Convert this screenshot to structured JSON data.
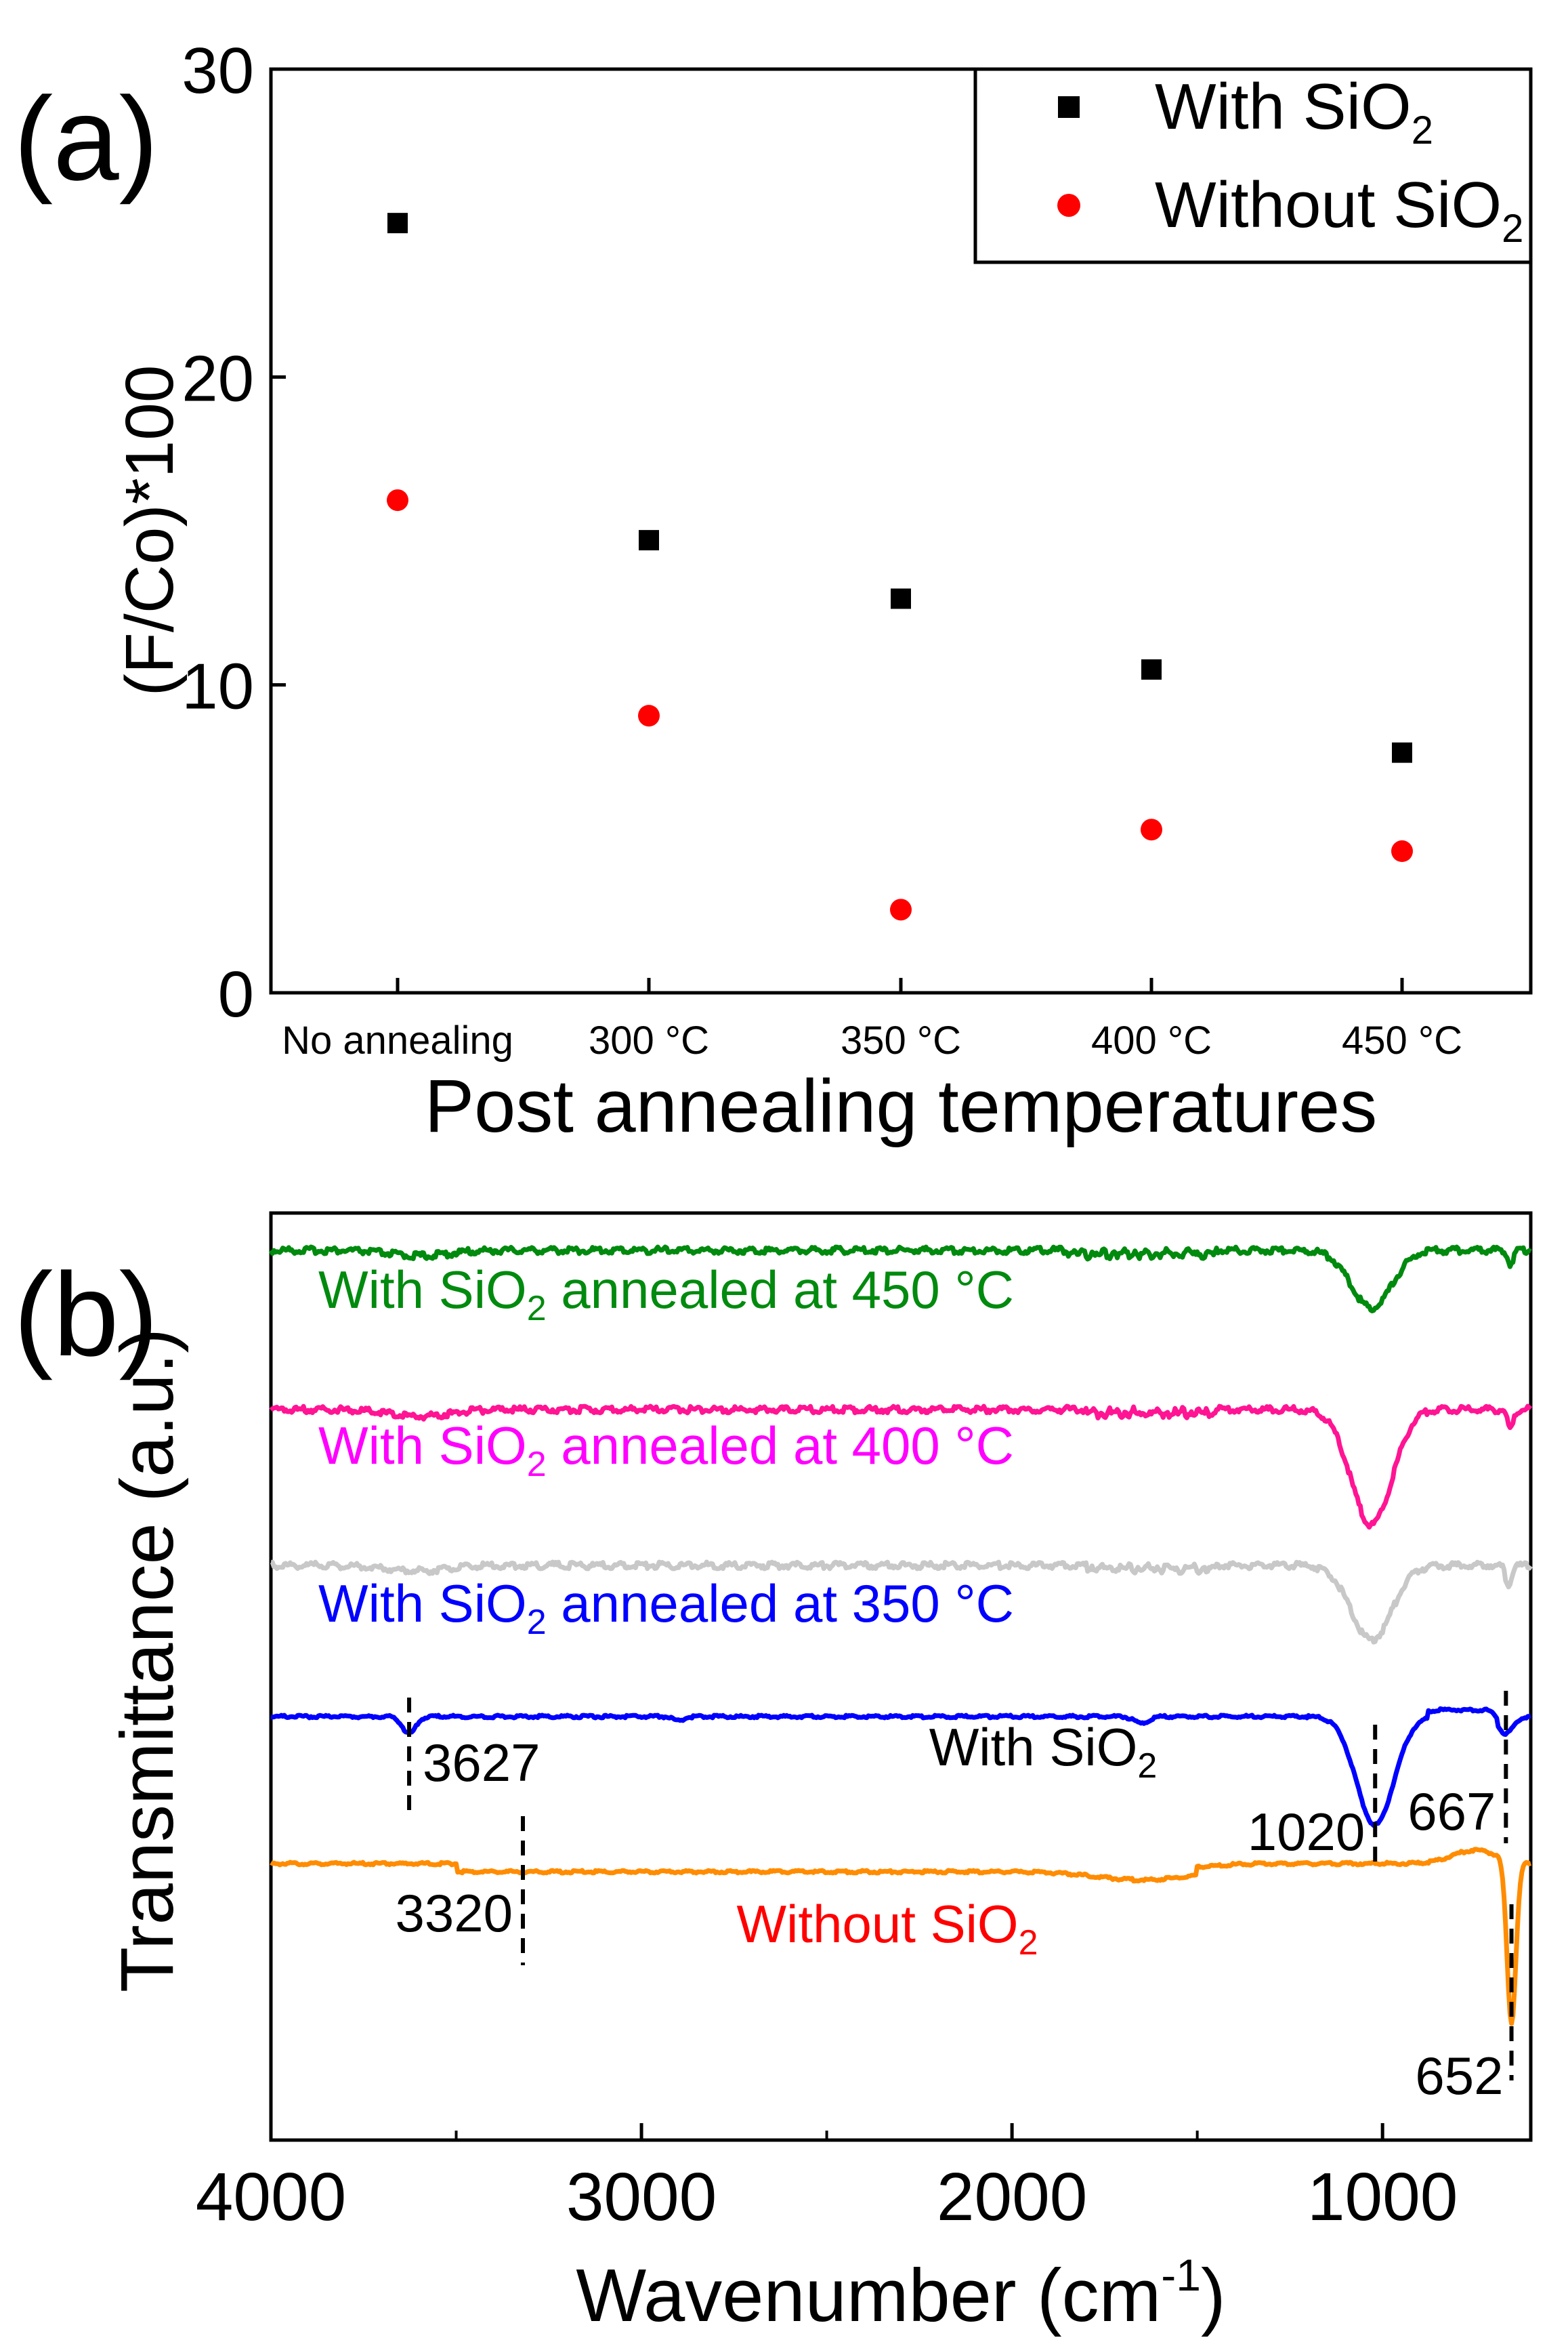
{
  "chart_data": [
    {
      "panel_label": "(a)",
      "type": "scatter",
      "categories": [
        "No annealing",
        "300 °C",
        "350 °C",
        "400 °C",
        "450 °C"
      ],
      "series": [
        {
          "name": "With SiO",
          "subscript": "2",
          "marker": "square",
          "color": "#000000",
          "values": [
            25.0,
            14.7,
            12.8,
            10.5,
            7.8
          ]
        },
        {
          "name": "Without SiO",
          "subscript": "2",
          "marker": "circle",
          "color": "#ff0000",
          "values": [
            16.0,
            9.0,
            2.7,
            5.3,
            4.6
          ]
        }
      ],
      "xlabel": "Post annealing temperatures",
      "ylabel": "(F/Co)*100",
      "ylim": [
        0,
        30
      ],
      "yticks": [
        "0",
        "10",
        "20",
        "30"
      ],
      "legend_position": "top-right",
      "grid": false
    },
    {
      "panel_label": "(b)",
      "type": "line",
      "xlabel": "Wavenumber (cm",
      "xlabel_superscript": "-1",
      "xlabel_suffix": ")",
      "ylabel": "Transmittance (a.u.)",
      "xlim": [
        4000,
        600
      ],
      "xticks": [
        "4000",
        "3000",
        "2000",
        "1000"
      ],
      "grid": false,
      "series": [
        {
          "label_prefix": "With SiO",
          "subscript": "2",
          "label_suffix": " annealed at 450 °C",
          "color": "#008a0e",
          "label_color": "#008a0e"
        },
        {
          "label_prefix": "With SiO",
          "subscript": "2",
          "label_suffix": " annealed at 400 °C",
          "color": "#ff1493",
          "label_color": "#ff00ff"
        },
        {
          "label_prefix": "With SiO",
          "subscript": "2",
          "label_suffix": " annealed at 350 °C",
          "color": "#c8c8c8",
          "label_color": "#0000ff"
        },
        {
          "label_prefix": "With SiO",
          "subscript": "2",
          "label_suffix": "",
          "color": "#0000ff",
          "label_color": "#000000"
        },
        {
          "label_prefix": "Without SiO",
          "subscript": "2",
          "label_suffix": "",
          "color": "#ff8c00",
          "label_color": "#ff0000"
        }
      ],
      "peak_annotations": [
        {
          "wavenumber": 3627,
          "label": "3627"
        },
        {
          "wavenumber": 1020,
          "label": "1020"
        },
        {
          "wavenumber": 667,
          "label": "667"
        },
        {
          "wavenumber": 3320,
          "label": "3320"
        },
        {
          "wavenumber": 652,
          "label": "652"
        }
      ]
    }
  ]
}
